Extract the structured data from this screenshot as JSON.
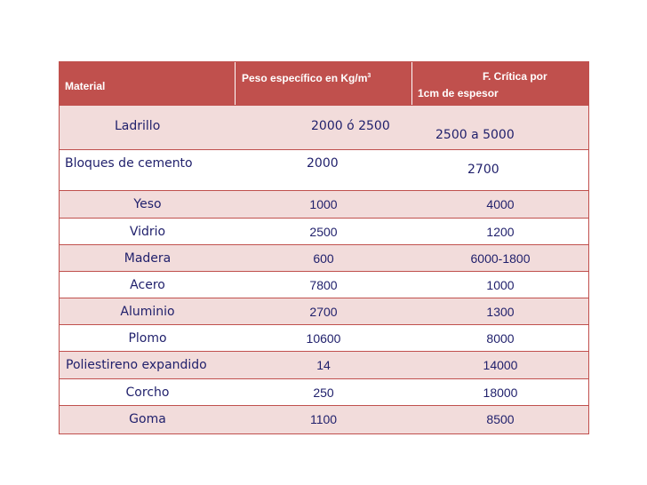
{
  "table": {
    "header": {
      "material": "Material",
      "peso": "Peso específico en Kg/m",
      "peso_sup": "3",
      "critica_line1": "F. Crítica por",
      "critica_line2": "1cm de espesor"
    },
    "rows": [
      {
        "material": "Ladrillo",
        "peso": "2000 ó 2500",
        "critica": "2500 a  5000"
      },
      {
        "material": "Bloques de cemento",
        "peso": "2000",
        "critica": "2700"
      },
      {
        "material": "Yeso",
        "peso": "1000",
        "critica": "4000"
      },
      {
        "material": "Vidrio",
        "peso": "2500",
        "critica": "1200"
      },
      {
        "material": "Madera",
        "peso": "600",
        "critica": "6000-1800"
      },
      {
        "material": "Acero",
        "peso": "7800",
        "critica": "1000"
      },
      {
        "material": "Aluminio",
        "peso": "2700",
        "critica": "1300"
      },
      {
        "material": "Plomo",
        "peso": "10600",
        "critica": "8000"
      },
      {
        "material": "Poliestireno expandido",
        "peso": "14",
        "critica": "14000"
      },
      {
        "material": "Corcho",
        "peso": "250",
        "critica": "18000"
      },
      {
        "material": "Goma",
        "peso": "1100",
        "critica": "8500"
      }
    ],
    "colors": {
      "header_bg": "#c0504d",
      "band": "#f2dcdb",
      "text": "#1f1f6b"
    }
  }
}
